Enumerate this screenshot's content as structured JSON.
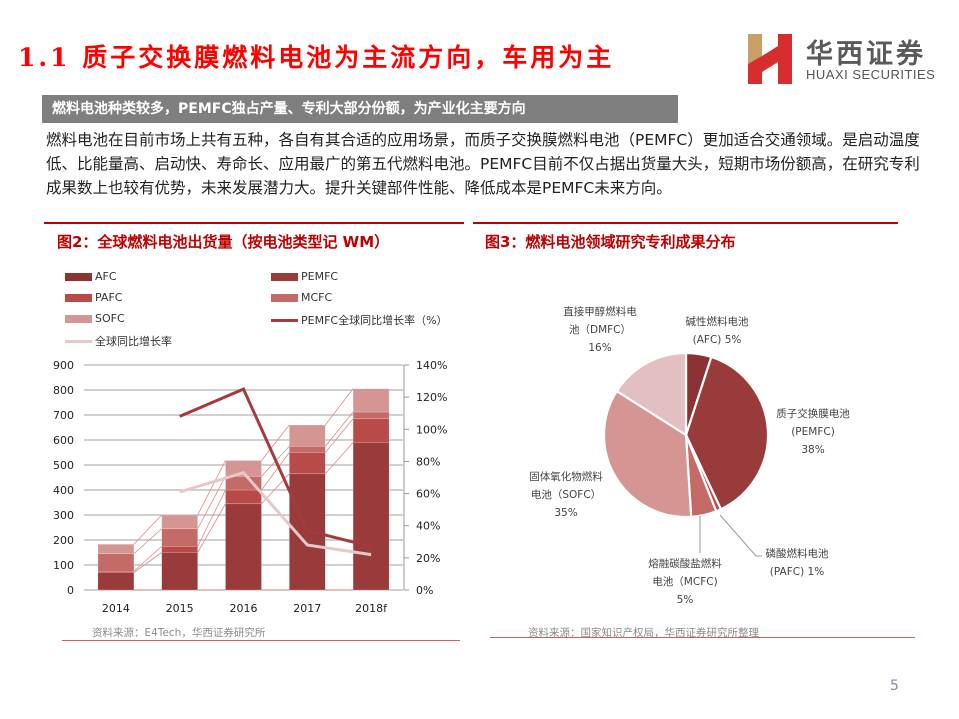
{
  "header": {
    "title": "1.1 质子交换膜燃料电池为主流方向，车用为主",
    "logo_cn": "华西证券",
    "logo_en": "HUAXI SECURITIES"
  },
  "banner": {
    "text": "燃料电池种类较多，PEMFC独占产量、专利大部分份额，为产业化主要方向"
  },
  "paragraph": "燃料电池在目前市场上共有五种，各自有其合适的应用场景，而质子交换膜燃料电池（PEMFC）更加适合交通领域。是启动温度低、比能量高、启动快、寿命长、应用最广的第五代燃料电池。PEMFC目前不仅占据出货量大头，短期市场份额高，在研究专利成果数上也较有优势，未来发展潜力大。提升关键部件性能、降低成本是PEMFC未来方向。",
  "figure2": {
    "title": "图2：全球燃料电池出货量（按电池类型记 WM）",
    "source": "资料来源：E4Tech，华西证券研究所"
  },
  "figure3": {
    "title": "图3：燃料电池领域研究专利成果分布",
    "source": "资料来源：国家知识产权局，华西证券研究所整理"
  },
  "page_number": "5",
  "colors": {
    "title_red": "#ff0000",
    "figure_red": "#c00000",
    "AFC": "#8b3232",
    "PEMFC": "#993b3b",
    "PAFC": "#b84a48",
    "MCFC": "#c46a67",
    "SOFC": "#d49593",
    "DMFC": "#e2c0c1",
    "pemfc_growth_line": "#a63a3a",
    "total_growth_line": "#e8c8c8"
  },
  "chart_data": [
    {
      "type": "bar",
      "subtype": "stacked_bar_with_lines",
      "title": "图2：全球燃料电池出货量（按电池类型记 WM）",
      "categories": [
        "2014",
        "2015",
        "2016",
        "2017",
        "2018f"
      ],
      "series": [
        {
          "name": "AFC",
          "values": [
            0,
            0,
            0,
            0,
            0
          ]
        },
        {
          "name": "PEMFC",
          "values": [
            70,
            150,
            345,
            465,
            590
          ]
        },
        {
          "name": "PAFC",
          "values": [
            5,
            25,
            55,
            85,
            95
          ]
        },
        {
          "name": "MCFC",
          "values": [
            70,
            70,
            55,
            25,
            27
          ]
        },
        {
          "name": "SOFC",
          "values": [
            38,
            55,
            63,
            85,
            93
          ]
        }
      ],
      "line_series": [
        {
          "name": "PEMFC全球同比增长率（%）",
          "axis": "right",
          "values": [
            null,
            108,
            125,
            37,
            27
          ]
        },
        {
          "name": "全球同比增长率",
          "axis": "right",
          "values": [
            null,
            61,
            73,
            28,
            22
          ]
        }
      ],
      "legend": [
        "AFC",
        "PEMFC",
        "PAFC",
        "MCFC",
        "SOFC",
        "PEMFC全球同比增长率（%）",
        "全球同比增长率"
      ],
      "legend_position": "top",
      "ylabel": "",
      "xlabel": "",
      "ylim": [
        0,
        900
      ],
      "yticks": [
        "0",
        "100",
        "200",
        "300",
        "400",
        "500",
        "600",
        "700",
        "800",
        "900"
      ],
      "y2lim": [
        0,
        140
      ],
      "y2ticks": [
        "0%",
        "20%",
        "40%",
        "60%",
        "80%",
        "100%",
        "120%",
        "140%"
      ],
      "grid": true
    },
    {
      "type": "pie",
      "title": "图3：燃料电池领域研究专利成果分布",
      "labels": [
        "碱性燃料电池（AFC）",
        "质子交换膜电池（PEMFC）",
        "磷酸燃料电池（PAFC）",
        "熔融碳酸盐燃料电池（MCFC）",
        "固体氧化物燃料电池（SOFC）",
        "直接甲醇燃料电池（DMFC）"
      ],
      "values": [
        5,
        38,
        1,
        5,
        35,
        16
      ],
      "value_labels": [
        "5%",
        "38%",
        "1%",
        "5%",
        "35%",
        "16%"
      ],
      "label_lines": [
        [
          "碱性燃料电池",
          "(AFC)   5%"
        ],
        [
          "质子交换膜电池",
          "(PEMFC)",
          "38%"
        ],
        [
          "磷酸燃料电池",
          "(PAFC)   1%"
        ],
        [
          "熔融碳酸盐燃料",
          "电池（MCFC)",
          "5%"
        ],
        [
          "固体氧化物燃料",
          "电池（SOFC）",
          "35%"
        ],
        [
          "直接甲醇燃料电",
          "池（DMFC）",
          "16%"
        ]
      ]
    }
  ]
}
